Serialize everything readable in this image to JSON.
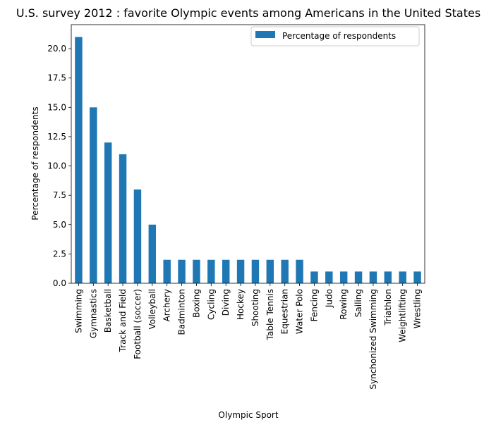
{
  "chart_data": {
    "type": "bar",
    "title": "U.S. survey 2012 : favorite Olympic events among Americans in the United States",
    "xlabel": "Olympic Sport",
    "ylabel": "Percentage of respondents",
    "categories": [
      "Swimming",
      "Gymnastics",
      "Basketball",
      "Track and Field",
      "Football (soccer)",
      "Volleyball",
      "Archery",
      "Badminton",
      "Boxing",
      "Cycling",
      "Diving",
      "Hockey",
      "Shooting",
      "Table Tennis",
      "Equestrian",
      "Water Polo",
      "Fencing",
      "Judo",
      "Rowing",
      "Sailing",
      "Synchonized Swimming",
      "Triathlon",
      "Weightlifting",
      "Wrestling"
    ],
    "series": [
      {
        "name": "Percentage of respondents",
        "values": [
          21,
          15,
          12,
          11,
          8,
          5,
          2,
          2,
          2,
          2,
          2,
          2,
          2,
          2,
          2,
          2,
          1,
          1,
          1,
          1,
          1,
          1,
          1,
          1
        ],
        "color": "#1f77b4"
      }
    ],
    "ylim": [
      0,
      22.05
    ],
    "yticks": [
      0.0,
      2.5,
      5.0,
      7.5,
      10.0,
      12.5,
      15.0,
      17.5,
      20.0
    ],
    "ytick_labels": [
      "0.0",
      "2.5",
      "5.0",
      "7.5",
      "10.0",
      "12.5",
      "15.0",
      "17.5",
      "20.0"
    ],
    "grid": false,
    "legend_position": "top-right"
  }
}
